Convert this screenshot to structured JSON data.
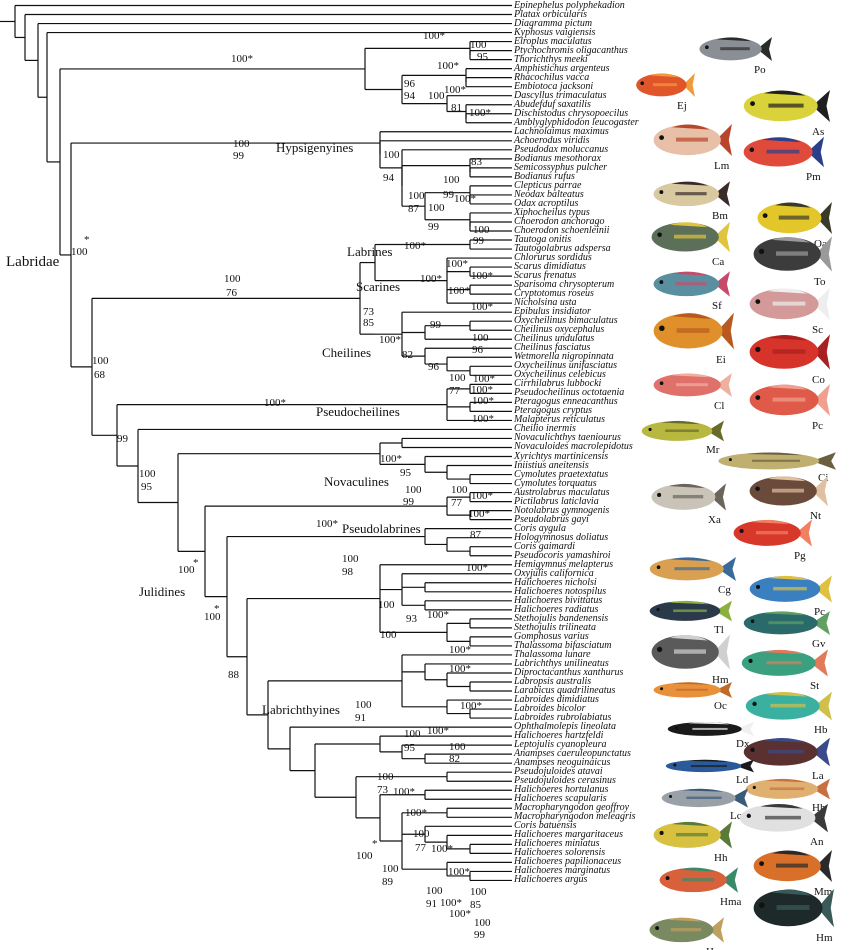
{
  "taxa": [
    "Epinephelus polyphekadion",
    "Platax orbicularis",
    "Diagramma pictum",
    "Kyphosus vaigiensis",
    "Elroplus maculatus",
    "Ptychochromis oligacanthus",
    "Thorichthys meeki",
    "Amphistichus argenteus",
    "Rhacochilus vacca",
    "Embiotoca jacksoni",
    "Dascyllus trimaculatus",
    "Abudefduf saxatilis",
    "Dischistodus chrysopoecilus",
    "Amblyglyphidodon leucogaster",
    "Lachnolaimus maximus",
    "Achoerodus viridis",
    "Pseudodax moluccanus",
    "Bodianus mesothorax",
    "Semicossyphus pulcher",
    "Bodianus rufus",
    "Clepticus parrae",
    "Neodax balteatus",
    "Odax acroptilus",
    "Xiphocheilus typus",
    "Choerodon anchorago",
    "Choerodon schoenleinii",
    "Tautoga onitis",
    "Tautogolabrus adspersa",
    "Chlorurus sordidus",
    "Scarus dimidiatus",
    "Scarus frenatus",
    "Sparisoma chrysopterum",
    "Cryptotomus roseus",
    "Nicholsina usta",
    "Epibulus insidiator",
    "Oxycheilinus bimaculatus",
    "Cheilinus oxycephalus",
    "Cheilinus undulatus",
    "Cheilinus fasciatus",
    "Wetmorella nigropinnata",
    "Oxycheilinus unifasciatus",
    "Oxycheilinus celebicus",
    "Cirrhilabrus lubbocki",
    "Pseudocheilinus octotaenia",
    "Pteragogus enneacanthus",
    "Pteragogus cryptus",
    "Malapterus reticulatus",
    "Cheilio inermis",
    "Novaculichthys taeniourus",
    "Novaculoides macrolepidotus",
    "Xyrichtys martinicensis",
    "Iniistius aneitensis",
    "Cymolutes praetextatus",
    "Cymolutes torquatus",
    "Austrolabrus maculatus",
    "Pictilabrus laticlavia",
    "Notolabrus gymnogenis",
    "Pseudolabrus gayi",
    "Coris aygula",
    "Hologymnosus doliatus",
    "Coris gaimardi",
    "Pseudocoris yamashiroi",
    "Hemigymnus melapterus",
    "Oxyjulis californica",
    "Halichoeres nicholsi",
    "Halichoeres notospilus",
    "Halichoeres bivittatus",
    "Halichoeres radiatus",
    "Stethojulis bandenensis",
    "Stethojulis trilineata",
    "Gomphosus varius",
    "Thalassoma bifasciatum",
    "Thalassoma lunare",
    "Labrichthys unilineatus",
    "Diproctacanthus xanthurus",
    "Labropsis australis",
    "Larabicus quadrilineatus",
    "Labroides dimidiatus",
    "Labroides bicolor",
    "Labroides rubrolabiatus",
    "Ophthalmolepis lineolata",
    "Halichoeres hartzfeldi",
    "Leptojulis cyanopleura",
    "Anampses caeruleopunctatus",
    "Anampses neoguinaicus",
    "Pseudojuloides atavai",
    "Pseudojuloides cerasinus",
    "Halichoeres hortulanus",
    "Halichoeres scapularis",
    "Macropharyngodon geoffroy",
    "Macropharyngodon meleagris",
    "Coris batuensis",
    "Halichoeres margaritaceus",
    "Halichoeres miniatus",
    "Halichoeres solorensis",
    "Halichoeres papilionaceus",
    "Halichoeres marginatus",
    "Halichoeres argus"
  ],
  "clades": {
    "labridae": "Labridae",
    "hypsigenyines": "Hypsigenyines",
    "labrines": "Labrines",
    "scarines": "Scarines",
    "cheilines": "Cheilines",
    "pseudocheilines": "Pseudocheilines",
    "novaculines": "Novaculines",
    "pseudolabrines": "Pseudolabrines",
    "julidines": "Julidines",
    "labrichthyines": "Labrichthyines"
  },
  "support": [
    {
      "t": "100*",
      "c": "o1"
    },
    {
      "t": "100*",
      "c": "o2"
    },
    {
      "t": "100",
      "c": "o3"
    },
    {
      "t": "95",
      "c": "o4"
    },
    {
      "t": "100*",
      "c": "o5"
    },
    {
      "t": "96",
      "c": "o6"
    },
    {
      "t": "94",
      "c": "o7"
    },
    {
      "t": "100",
      "c": "o8"
    },
    {
      "t": "100*",
      "c": "o9"
    },
    {
      "t": "81",
      "c": "o10"
    },
    {
      "t": "100*",
      "c": "o11"
    },
    {
      "t": "100",
      "c": "h1"
    },
    {
      "t": "99",
      "c": "h2"
    },
    {
      "t": "100",
      "c": "h3"
    },
    {
      "t": "94",
      "c": "h4"
    },
    {
      "t": "83",
      "c": "h5"
    },
    {
      "t": "100",
      "c": "h6"
    },
    {
      "t": "99",
      "c": "h7"
    },
    {
      "t": "100",
      "c": "h8"
    },
    {
      "t": "87",
      "c": "h9"
    },
    {
      "t": "100*",
      "c": "h10"
    },
    {
      "t": "100",
      "c": "h11"
    },
    {
      "t": "99",
      "c": "h12"
    },
    {
      "t": "100",
      "c": "h13"
    },
    {
      "t": "99",
      "c": "h14"
    },
    {
      "t": "100",
      "c": "lab1"
    },
    {
      "t": "*",
      "c": "lab2"
    },
    {
      "t": "100",
      "c": "c1"
    },
    {
      "t": "76",
      "c": "c2"
    },
    {
      "t": "100*",
      "c": "c3"
    },
    {
      "t": "100*",
      "c": "c4"
    },
    {
      "t": "100*",
      "c": "c5"
    },
    {
      "t": "100*",
      "c": "c6"
    },
    {
      "t": "73",
      "c": "c7"
    },
    {
      "t": "85",
      "c": "c8"
    },
    {
      "t": "100*",
      "c": "c9"
    },
    {
      "t": "100*",
      "c": "c10"
    },
    {
      "t": "100*",
      "c": "c11"
    },
    {
      "t": "99",
      "c": "c12"
    },
    {
      "t": "100",
      "c": "c13"
    },
    {
      "t": "96",
      "c": "c14"
    },
    {
      "t": "82",
      "c": "c15"
    },
    {
      "t": "96",
      "c": "c16"
    },
    {
      "t": "100",
      "c": "c17"
    },
    {
      "t": "100*",
      "c": "c18"
    },
    {
      "t": "77",
      "c": "c19"
    },
    {
      "t": "100*",
      "c": "c20"
    },
    {
      "t": "100",
      "c": "b1"
    },
    {
      "t": "68",
      "c": "b2"
    },
    {
      "t": "100*",
      "c": "p1"
    },
    {
      "t": "100*",
      "c": "p2"
    },
    {
      "t": "100*",
      "c": "p3"
    },
    {
      "t": "99",
      "c": "b3"
    },
    {
      "t": "100",
      "c": "b4"
    },
    {
      "t": "95",
      "c": "b5"
    },
    {
      "t": "100*",
      "c": "n1"
    },
    {
      "t": "95",
      "c": "n2"
    },
    {
      "t": "100",
      "c": "n3"
    },
    {
      "t": "99",
      "c": "n4"
    },
    {
      "t": "100",
      "c": "n5"
    },
    {
      "t": "77",
      "c": "n6"
    },
    {
      "t": "100*",
      "c": "n7"
    },
    {
      "t": "100*",
      "c": "pl1"
    },
    {
      "t": "100*",
      "c": "pl2"
    },
    {
      "t": "87",
      "c": "pl3"
    },
    {
      "t": "100",
      "c": "j1"
    },
    {
      "t": "*",
      "c": "j2"
    },
    {
      "t": "100",
      "c": "j3"
    },
    {
      "t": "*",
      "c": "j4"
    },
    {
      "t": "100",
      "c": "j5"
    },
    {
      "t": "98",
      "c": "j6"
    },
    {
      "t": "100*",
      "c": "j7"
    },
    {
      "t": "88",
      "c": "j8"
    },
    {
      "t": "100",
      "c": "j9"
    },
    {
      "t": "93",
      "c": "j10"
    },
    {
      "t": "100*",
      "c": "j11"
    },
    {
      "t": "100",
      "c": "j12"
    },
    {
      "t": "100*",
      "c": "j13"
    },
    {
      "t": "100*",
      "c": "j14"
    },
    {
      "t": "100",
      "c": "lb1"
    },
    {
      "t": "91",
      "c": "lb2"
    },
    {
      "t": "100*",
      "c": "lb3"
    },
    {
      "t": "100",
      "c": "lb4"
    },
    {
      "t": "95",
      "c": "lb5"
    },
    {
      "t": "100*",
      "c": "lb6"
    },
    {
      "t": "100",
      "c": "lb7"
    },
    {
      "t": "82",
      "c": "lb8"
    },
    {
      "t": "100",
      "c": "k1"
    },
    {
      "t": "73",
      "c": "k2"
    },
    {
      "t": "100*",
      "c": "k3"
    },
    {
      "t": "100*",
      "c": "k4"
    },
    {
      "t": "100",
      "c": "k5"
    },
    {
      "t": "77",
      "c": "k6"
    },
    {
      "t": "100*",
      "c": "k7"
    },
    {
      "t": "100",
      "c": "k8"
    },
    {
      "t": "*",
      "c": "k9"
    },
    {
      "t": "100",
      "c": "k10"
    },
    {
      "t": "89",
      "c": "k11"
    },
    {
      "t": "100*",
      "c": "k12"
    },
    {
      "t": "100",
      "c": "k13"
    },
    {
      "t": "91",
      "c": "k14"
    },
    {
      "t": "100",
      "c": "k15"
    },
    {
      "t": "85",
      "c": "k16"
    },
    {
      "t": "100*",
      "c": "k17"
    },
    {
      "t": "100*",
      "c": "k18"
    },
    {
      "t": "100",
      "c": "k19"
    },
    {
      "t": "99",
      "c": "k20"
    }
  ],
  "fish": [
    {
      "code": "Po",
      "body": "#8a8f96",
      "accent": "#2b2b2b"
    },
    {
      "code": "Ej",
      "body": "#e0562a",
      "accent": "#f29a3a"
    },
    {
      "code": "As",
      "body": "#d9d23a",
      "accent": "#1f1f1f"
    },
    {
      "code": "Lm",
      "body": "#e8c0a8",
      "accent": "#b8462c"
    },
    {
      "code": "Pm",
      "body": "#e04a3a",
      "accent": "#2c3f8a"
    },
    {
      "code": "Bm",
      "body": "#d8c9a0",
      "accent": "#3a2a2a"
    },
    {
      "code": "Oa",
      "body": "#e3c62a",
      "accent": "#3a3a2a"
    },
    {
      "code": "Ca",
      "body": "#5c6f58",
      "accent": "#e0c440"
    },
    {
      "code": "To",
      "body": "#3c3c3c",
      "accent": "#9a9a9a"
    },
    {
      "code": "Sf",
      "body": "#5a8fa0",
      "accent": "#c84a6a"
    },
    {
      "code": "Sc",
      "body": "#d49a9a",
      "accent": "#eeeeee"
    },
    {
      "code": "Ei",
      "body": "#e0902a",
      "accent": "#b85a20"
    },
    {
      "code": "Co",
      "body": "#d6342a",
      "accent": "#a82020"
    },
    {
      "code": "Cl",
      "body": "#e0706a",
      "accent": "#f0b0a0"
    },
    {
      "code": "Pc",
      "body": "#e05a4a",
      "accent": "#f0a090"
    },
    {
      "code": "Mr",
      "body": "#b8b840",
      "accent": "#6a6a2a"
    },
    {
      "code": "Ci",
      "body": "#c0b070",
      "accent": "#6a6040"
    },
    {
      "code": "Xa",
      "body": "#cac4b8",
      "accent": "#6a645a"
    },
    {
      "code": "Nt",
      "body": "#6a4a3a",
      "accent": "#e0c0a0"
    },
    {
      "code": "Pg",
      "body": "#d8382a",
      "accent": "#f08060"
    },
    {
      "code": "Cg",
      "body": "#d8a050",
      "accent": "#3a6a9a"
    },
    {
      "code": "Pc",
      "body": "#3a80c0",
      "accent": "#e0c040"
    },
    {
      "code": "Tl",
      "body": "#2a3a4a",
      "accent": "#8ab040"
    },
    {
      "code": "Gv",
      "body": "#2a6a6a",
      "accent": "#60a060"
    },
    {
      "code": "Hm",
      "body": "#5a5a5a",
      "accent": "#d0d0d0"
    },
    {
      "code": "St",
      "body": "#3aa080",
      "accent": "#e07a5a"
    },
    {
      "code": "Oc",
      "body": "#e8903a",
      "accent": "#c06a2a"
    },
    {
      "code": "Hb",
      "body": "#3ab0a0",
      "accent": "#d0c04a"
    },
    {
      "code": "Dx",
      "body": "#1a1a1a",
      "accent": "#f0f0f0"
    },
    {
      "code": "La",
      "body": "#5a3030",
      "accent": "#3a4a8a"
    },
    {
      "code": "Ld",
      "body": "#2a5a9a",
      "accent": "#1a1a1a"
    },
    {
      "code": "Hh",
      "body": "#e0b070",
      "accent": "#c87040"
    },
    {
      "code": "Lc",
      "body": "#9aa0a8",
      "accent": "#3a5a7a"
    },
    {
      "code": "An",
      "body": "#e0e0e0",
      "accent": "#3a3a3a"
    },
    {
      "code": "Hh",
      "body": "#d8c040",
      "accent": "#5a7a3a"
    },
    {
      "code": "Mm",
      "body": "#d8702a",
      "accent": "#2a2a2a"
    },
    {
      "code": "Hma",
      "body": "#d8603a",
      "accent": "#3a8a6a"
    },
    {
      "code": "Hm",
      "body": "#1e2a2a",
      "accent": "#3a5a5a"
    },
    {
      "code": "Hs",
      "body": "#7a8a60",
      "accent": "#c0a060"
    }
  ]
}
